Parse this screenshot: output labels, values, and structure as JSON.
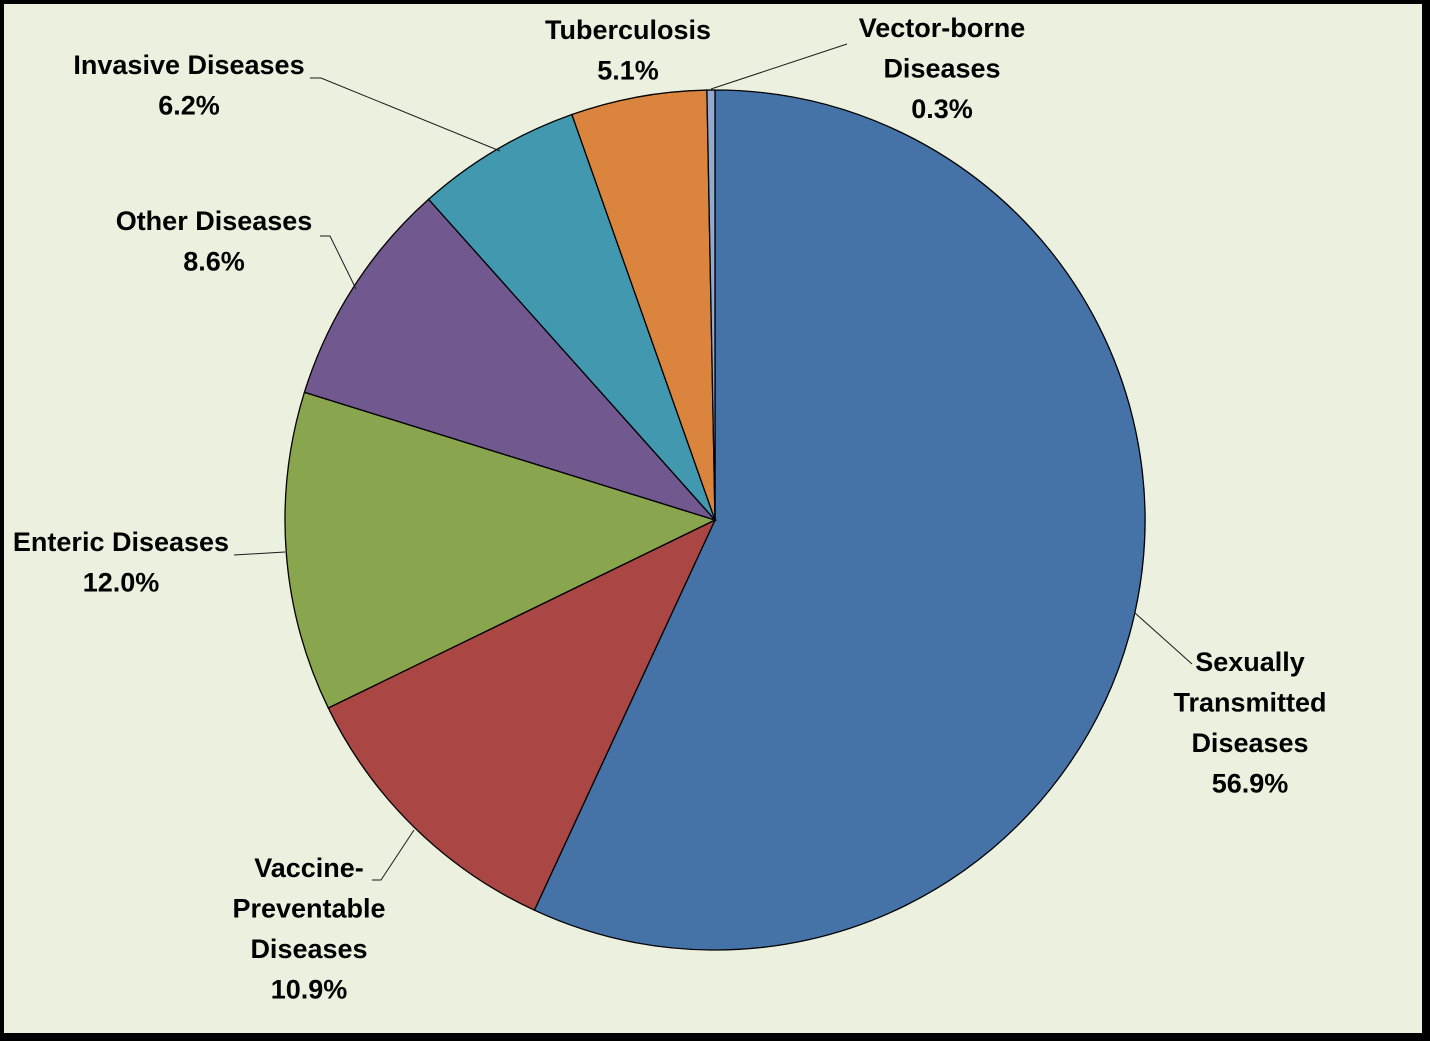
{
  "chart_data": {
    "type": "pie",
    "title": "",
    "start_angle_deg": 0,
    "direction": "clockwise",
    "legend": "none",
    "slices": [
      {
        "label_lines": [
          "Sexually",
          "Transmitted",
          "Diseases"
        ],
        "value": 56.9,
        "value_label": "56.9%",
        "color": "#4572a7"
      },
      {
        "label_lines": [
          "Vaccine-",
          "Preventable",
          "Diseases"
        ],
        "value": 10.9,
        "value_label": "10.9%",
        "color": "#aa4643"
      },
      {
        "label_lines": [
          "Enteric Diseases"
        ],
        "value": 12.0,
        "value_label": "12.0%",
        "color": "#89a54e"
      },
      {
        "label_lines": [
          "Other Diseases"
        ],
        "value": 8.6,
        "value_label": "8.6%",
        "color": "#71588f"
      },
      {
        "label_lines": [
          "Invasive Diseases"
        ],
        "value": 6.2,
        "value_label": "6.2%",
        "color": "#4198af"
      },
      {
        "label_lines": [
          "Tuberculosis"
        ],
        "value": 5.1,
        "value_label": "5.1%",
        "color": "#db843d"
      },
      {
        "label_lines": [
          "Vector-borne",
          "Diseases"
        ],
        "value": 0.3,
        "value_label": "0.3%",
        "color": "#93a9cf"
      }
    ]
  }
}
